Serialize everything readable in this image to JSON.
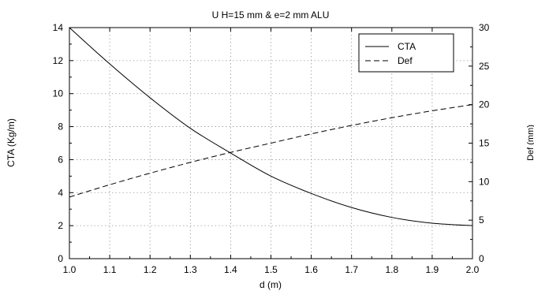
{
  "chart_data": {
    "type": "line",
    "title": "U H=15 mm & e=2 mm ALU",
    "xlabel": "d (m)",
    "ylabel": "CTA (Kg/m)",
    "y2label": "Def (mm)",
    "xlim": [
      1.0,
      2.0
    ],
    "ylim": [
      0,
      14
    ],
    "y2lim": [
      0,
      30
    ],
    "xticks": [
      "1.0",
      "1.1",
      "1.2",
      "1.3",
      "1.4",
      "1.5",
      "1.6",
      "1.7",
      "1.8",
      "1.9",
      "2.0"
    ],
    "yticks": [
      "0",
      "2",
      "4",
      "6",
      "8",
      "10",
      "12",
      "14"
    ],
    "y2ticks": [
      "0",
      "5",
      "10",
      "15",
      "20",
      "25",
      "30"
    ],
    "grid": true,
    "legend_position": "top-right",
    "x": [
      1.0,
      1.1,
      1.2,
      1.3,
      1.4,
      1.5,
      1.6,
      1.7,
      1.8,
      1.9,
      2.0
    ],
    "series": [
      {
        "name": "CTA",
        "axis": "left",
        "style": "solid",
        "color": "#000000",
        "values": [
          14.0,
          11.8,
          9.75,
          7.9,
          6.4,
          5.0,
          3.95,
          3.1,
          2.5,
          2.15,
          2.0
        ]
      },
      {
        "name": "Def",
        "axis": "right",
        "style": "dashed",
        "color": "#000000",
        "values": [
          8.0,
          9.6,
          11.1,
          12.5,
          13.8,
          15.0,
          16.2,
          17.3,
          18.3,
          19.2,
          20.0
        ]
      }
    ]
  }
}
